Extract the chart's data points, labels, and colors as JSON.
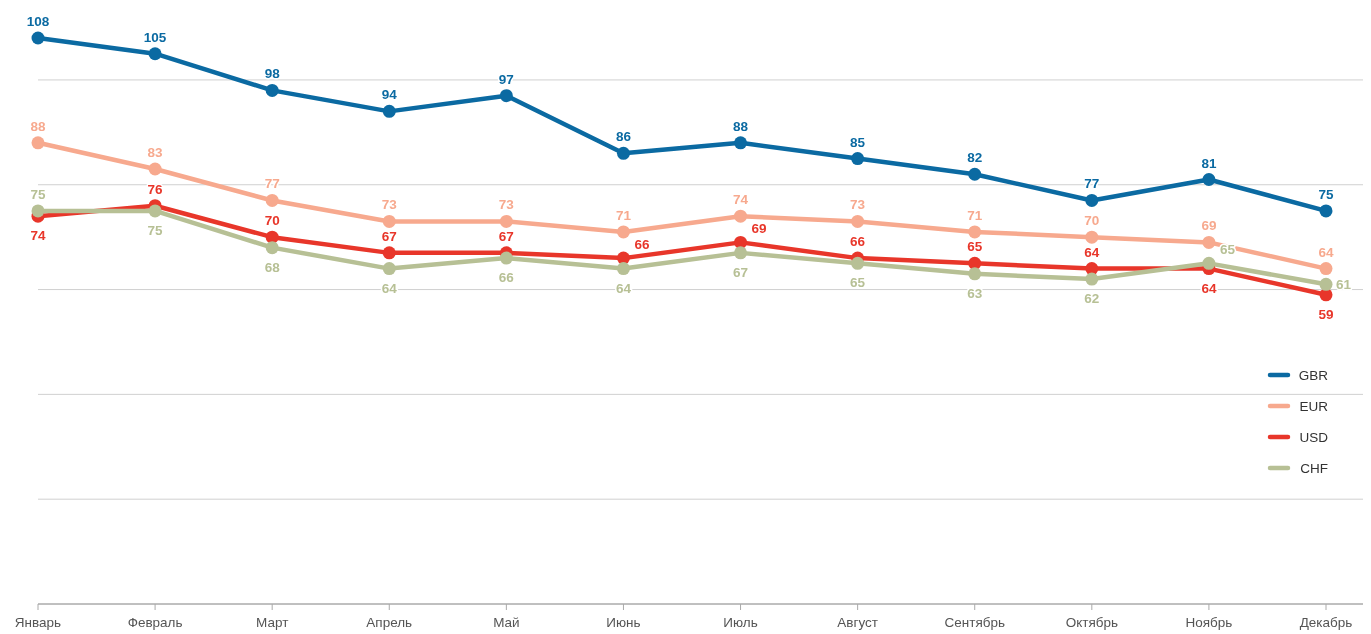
{
  "chart_data": {
    "type": "line",
    "categories": [
      "Январь",
      "Февраль",
      "Март",
      "Апрель",
      "Май",
      "Июнь",
      "Июль",
      "Август",
      "Сентябрь",
      "Октябрь",
      "Ноябрь",
      "Декабрь"
    ],
    "series": [
      {
        "name": "GBR",
        "color": "#0b6aa2",
        "values": [
          108,
          105,
          98,
          94,
          97,
          86,
          88,
          85,
          82,
          77,
          81,
          75
        ]
      },
      {
        "name": "EUR",
        "color": "#f7a98e",
        "values": [
          88,
          83,
          77,
          73,
          73,
          71,
          74,
          73,
          71,
          70,
          69,
          64
        ]
      },
      {
        "name": "USD",
        "color": "#e8362a",
        "values": [
          74,
          76,
          70,
          67,
          67,
          66,
          69,
          66,
          65,
          64,
          64,
          59
        ]
      },
      {
        "name": "CHF",
        "color": "#b7c095",
        "values": [
          75,
          75,
          68,
          64,
          66,
          64,
          67,
          65,
          63,
          62,
          65,
          61
        ]
      }
    ],
    "yticks": [
      {
        "value": 0,
        "label": null
      },
      {
        "value": 20,
        "label": null
      },
      {
        "value": 40,
        "label": null
      },
      {
        "value": 60,
        "label": null
      },
      {
        "value": 80,
        "label": null
      },
      {
        "value": 100,
        "label": null
      }
    ],
    "tick_labels": "x",
    "grid": "y",
    "legend": "right",
    "marker": "circle",
    "line_style": "solid",
    "data_labels": true
  }
}
